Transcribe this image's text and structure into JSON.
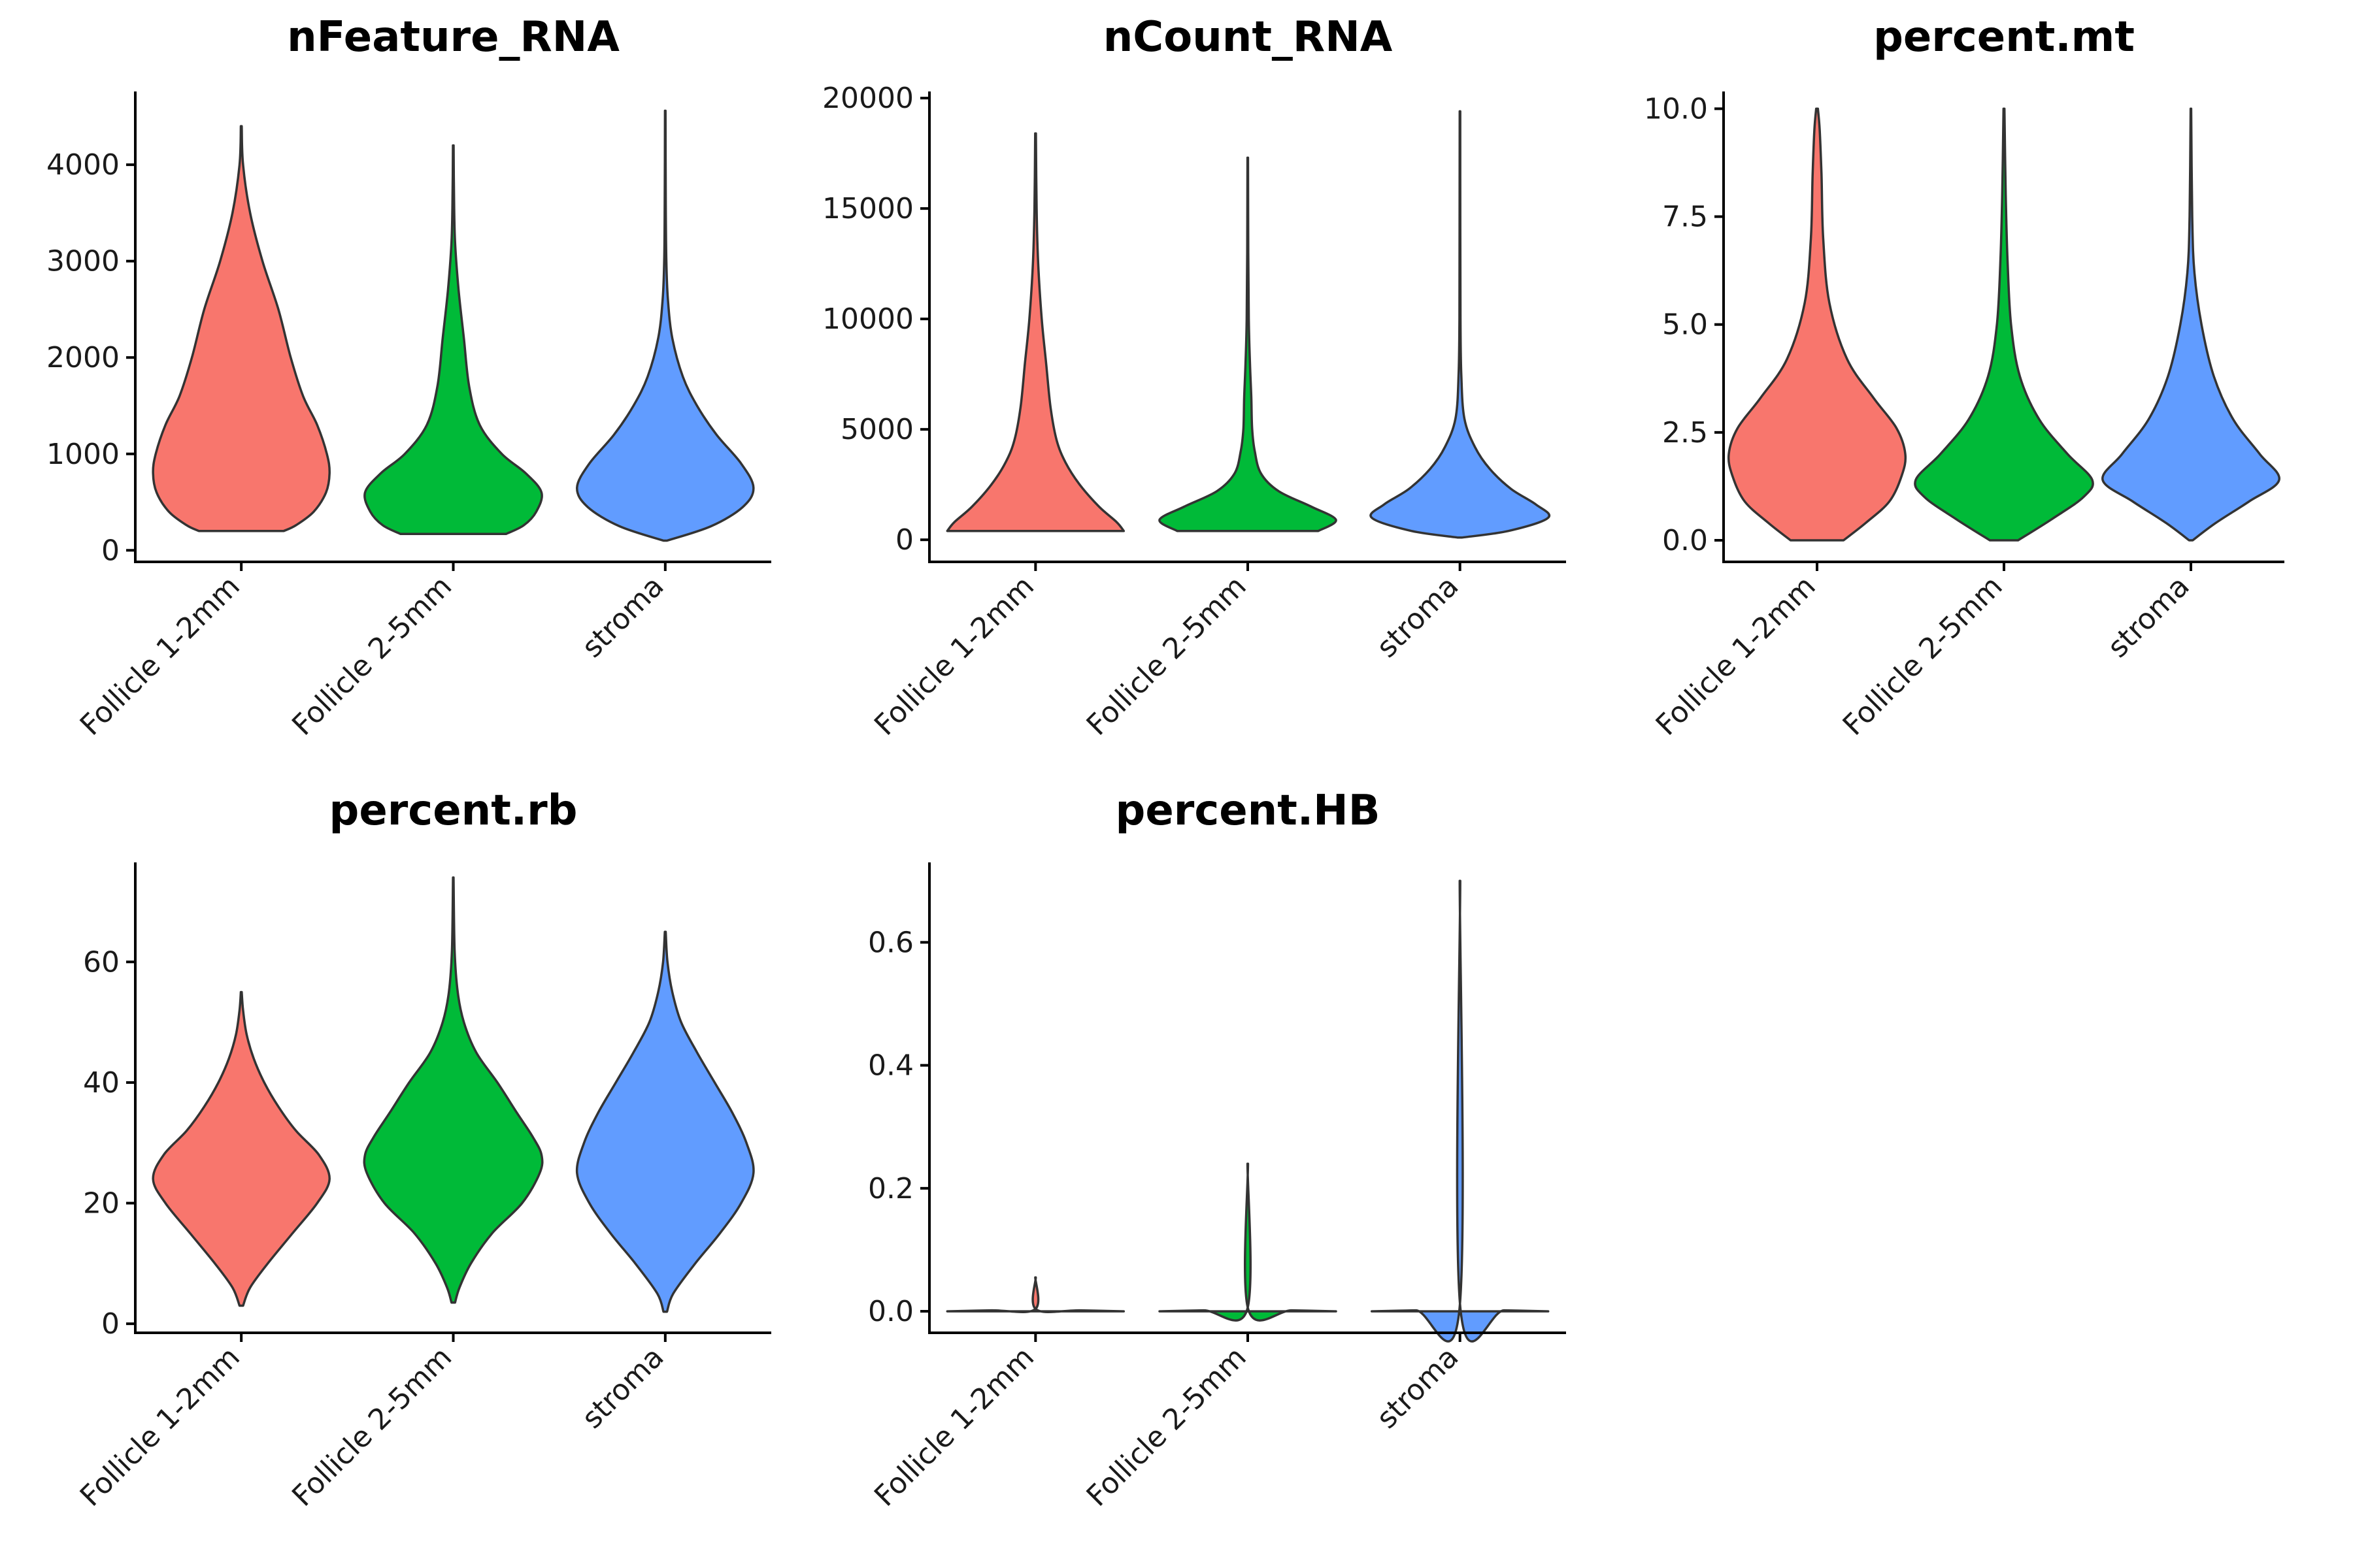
{
  "colors": {
    "Follicle 1-2mm": "#F8766D",
    "Follicle 2-5mm": "#00BA38",
    "stroma": "#619CFF"
  },
  "chart_data": [
    {
      "type": "violin",
      "title": "nFeature_RNA",
      "categories": [
        "Follicle 1-2mm",
        "Follicle 2-5mm",
        "stroma"
      ],
      "ylim": [
        -120,
        4760
      ],
      "yticks": [
        0,
        1000,
        2000,
        3000,
        4000
      ],
      "yticklabels": [
        "0",
        "1000",
        "2000",
        "3000",
        "4000"
      ],
      "series": [
        {
          "min": 200,
          "max": 4400,
          "profile": [
            [
              200,
              0.48
            ],
            [
              260,
              0.62
            ],
            [
              400,
              0.82
            ],
            [
              600,
              0.96
            ],
            [
              800,
              1.0
            ],
            [
              1000,
              0.97
            ],
            [
              1300,
              0.86
            ],
            [
              1600,
              0.7
            ],
            [
              2000,
              0.56
            ],
            [
              2500,
              0.42
            ],
            [
              3000,
              0.24
            ],
            [
              3500,
              0.1
            ],
            [
              4000,
              0.02
            ],
            [
              4400,
              0.005
            ]
          ]
        },
        {
          "min": 170,
          "max": 4200,
          "profile": [
            [
              170,
              0.6
            ],
            [
              260,
              0.8
            ],
            [
              400,
              0.94
            ],
            [
              600,
              1.0
            ],
            [
              800,
              0.82
            ],
            [
              1000,
              0.55
            ],
            [
              1300,
              0.3
            ],
            [
              1700,
              0.18
            ],
            [
              2200,
              0.12
            ],
            [
              2700,
              0.06
            ],
            [
              3200,
              0.02
            ],
            [
              3700,
              0.008
            ],
            [
              4200,
              0.004
            ]
          ]
        },
        {
          "min": 100,
          "max": 4560,
          "profile": [
            [
              100,
              0.02
            ],
            [
              250,
              0.52
            ],
            [
              450,
              0.88
            ],
            [
              650,
              1.0
            ],
            [
              900,
              0.86
            ],
            [
              1200,
              0.58
            ],
            [
              1500,
              0.36
            ],
            [
              1800,
              0.2
            ],
            [
              2200,
              0.08
            ],
            [
              2600,
              0.03
            ],
            [
              3000,
              0.012
            ],
            [
              3600,
              0.006
            ],
            [
              4560,
              0.003
            ]
          ]
        }
      ]
    },
    {
      "type": "violin",
      "title": "nCount_RNA",
      "categories": [
        "Follicle 1-2mm",
        "Follicle 2-5mm",
        "stroma"
      ],
      "ylim": [
        -1000,
        20300
      ],
      "yticks": [
        0,
        5000,
        10000,
        15000,
        20000
      ],
      "yticklabels": [
        "0",
        "5000",
        "10000",
        "15000",
        "20000"
      ],
      "series": [
        {
          "min": 400,
          "max": 18400,
          "profile": [
            [
              400,
              1.0
            ],
            [
              800,
              0.92
            ],
            [
              1500,
              0.72
            ],
            [
              2500,
              0.5
            ],
            [
              3500,
              0.34
            ],
            [
              4500,
              0.24
            ],
            [
              6000,
              0.17
            ],
            [
              8000,
              0.12
            ],
            [
              10000,
              0.07
            ],
            [
              12500,
              0.03
            ],
            [
              15000,
              0.012
            ],
            [
              18400,
              0.004
            ]
          ]
        },
        {
          "min": 400,
          "max": 17300,
          "profile": [
            [
              400,
              0.8
            ],
            [
              900,
              1.0
            ],
            [
              1500,
              0.72
            ],
            [
              2200,
              0.35
            ],
            [
              3000,
              0.15
            ],
            [
              4000,
              0.08
            ],
            [
              5000,
              0.05
            ],
            [
              6500,
              0.04
            ],
            [
              8000,
              0.025
            ],
            [
              10000,
              0.012
            ],
            [
              13000,
              0.006
            ],
            [
              17300,
              0.003
            ]
          ]
        },
        {
          "min": 100,
          "max": 19400,
          "profile": [
            [
              100,
              0.02
            ],
            [
              400,
              0.55
            ],
            [
              1000,
              1.0
            ],
            [
              1600,
              0.86
            ],
            [
              2300,
              0.58
            ],
            [
              3200,
              0.34
            ],
            [
              4200,
              0.17
            ],
            [
              5500,
              0.05
            ],
            [
              7500,
              0.015
            ],
            [
              10000,
              0.006
            ],
            [
              14000,
              0.004
            ],
            [
              19400,
              0.003
            ]
          ]
        }
      ]
    },
    {
      "type": "violin",
      "title": "percent.mt",
      "categories": [
        "Follicle 1-2mm",
        "Follicle 2-5mm",
        "stroma"
      ],
      "ylim": [
        -0.5,
        10.4
      ],
      "yticks": [
        0,
        2.5,
        5.0,
        7.5,
        10.0
      ],
      "yticklabels": [
        "0.0",
        "2.5",
        "5.0",
        "7.5",
        "10.0"
      ],
      "series": [
        {
          "min": 0,
          "max": 10,
          "profile": [
            [
              0,
              0.3
            ],
            [
              0.4,
              0.55
            ],
            [
              0.9,
              0.82
            ],
            [
              1.5,
              0.96
            ],
            [
              2.0,
              1.0
            ],
            [
              2.6,
              0.9
            ],
            [
              3.3,
              0.64
            ],
            [
              4.2,
              0.34
            ],
            [
              5.5,
              0.14
            ],
            [
              7.0,
              0.07
            ],
            [
              8.5,
              0.05
            ],
            [
              9.5,
              0.03
            ],
            [
              10,
              0.01
            ]
          ]
        },
        {
          "min": 0,
          "max": 10,
          "profile": [
            [
              0,
              0.16
            ],
            [
              0.5,
              0.55
            ],
            [
              1.0,
              0.9
            ],
            [
              1.4,
              1.0
            ],
            [
              2.0,
              0.72
            ],
            [
              2.8,
              0.4
            ],
            [
              3.8,
              0.18
            ],
            [
              5.0,
              0.08
            ],
            [
              6.5,
              0.04
            ],
            [
              8.0,
              0.02
            ],
            [
              10,
              0.005
            ]
          ]
        },
        {
          "min": 0,
          "max": 10,
          "profile": [
            [
              0,
              0.02
            ],
            [
              0.4,
              0.28
            ],
            [
              0.9,
              0.66
            ],
            [
              1.4,
              1.0
            ],
            [
              2.0,
              0.78
            ],
            [
              2.8,
              0.48
            ],
            [
              3.8,
              0.26
            ],
            [
              5.0,
              0.12
            ],
            [
              6.2,
              0.04
            ],
            [
              7.5,
              0.015
            ],
            [
              10,
              0.003
            ]
          ]
        }
      ]
    },
    {
      "type": "violin",
      "title": "percent.rb",
      "categories": [
        "Follicle 1-2mm",
        "Follicle 2-5mm",
        "stroma"
      ],
      "ylim": [
        -1.5,
        76.5
      ],
      "yticks": [
        0,
        20,
        40,
        60
      ],
      "yticklabels": [
        "0",
        "20",
        "40",
        "60"
      ],
      "series": [
        {
          "min": 3,
          "max": 55,
          "profile": [
            [
              3,
              0.02
            ],
            [
              6,
              0.1
            ],
            [
              10,
              0.3
            ],
            [
              15,
              0.58
            ],
            [
              20,
              0.86
            ],
            [
              24,
              1.0
            ],
            [
              28,
              0.88
            ],
            [
              32,
              0.62
            ],
            [
              36,
              0.42
            ],
            [
              40,
              0.26
            ],
            [
              44,
              0.14
            ],
            [
              48,
              0.06
            ],
            [
              52,
              0.02
            ],
            [
              55,
              0.005
            ]
          ]
        },
        {
          "min": 3.5,
          "max": 74,
          "profile": [
            [
              3.5,
              0.02
            ],
            [
              6,
              0.07
            ],
            [
              10,
              0.2
            ],
            [
              15,
              0.44
            ],
            [
              20,
              0.78
            ],
            [
              25,
              0.98
            ],
            [
              28,
              1.0
            ],
            [
              31,
              0.9
            ],
            [
              35,
              0.72
            ],
            [
              40,
              0.5
            ],
            [
              45,
              0.26
            ],
            [
              50,
              0.12
            ],
            [
              55,
              0.05
            ],
            [
              62,
              0.015
            ],
            [
              74,
              0.003
            ]
          ]
        },
        {
          "min": 2,
          "max": 65,
          "profile": [
            [
              2,
              0.02
            ],
            [
              5,
              0.09
            ],
            [
              10,
              0.34
            ],
            [
              15,
              0.62
            ],
            [
              20,
              0.86
            ],
            [
              25,
              1.0
            ],
            [
              30,
              0.92
            ],
            [
              35,
              0.76
            ],
            [
              40,
              0.56
            ],
            [
              45,
              0.36
            ],
            [
              50,
              0.18
            ],
            [
              55,
              0.08
            ],
            [
              60,
              0.025
            ],
            [
              65,
              0.005
            ]
          ]
        }
      ]
    },
    {
      "type": "violin",
      "title": "percent.HB",
      "categories": [
        "Follicle 1-2mm",
        "Follicle 2-5mm",
        "stroma"
      ],
      "ylim": [
        -0.035,
        0.73
      ],
      "yticks": [
        0,
        0.2,
        0.4,
        0.6
      ],
      "yticklabels": [
        "0.0",
        "0.2",
        "0.4",
        "0.6"
      ],
      "series": [
        {
          "min": 0,
          "max": 0.055,
          "profile": [
            [
              0,
              1.0
            ],
            [
              0.0015,
              0.5
            ],
            [
              0.003,
              0.006
            ],
            [
              0.055,
              0.003
            ]
          ]
        },
        {
          "min": 0,
          "max": 0.24,
          "profile": [
            [
              0,
              1.0
            ],
            [
              0.0015,
              0.5
            ],
            [
              0.003,
              0.006
            ],
            [
              0.24,
              0.003
            ]
          ]
        },
        {
          "min": 0,
          "max": 0.7,
          "profile": [
            [
              0,
              1.0
            ],
            [
              0.0015,
              0.5
            ],
            [
              0.003,
              0.006
            ],
            [
              0.7,
              0.003
            ]
          ]
        }
      ]
    }
  ]
}
